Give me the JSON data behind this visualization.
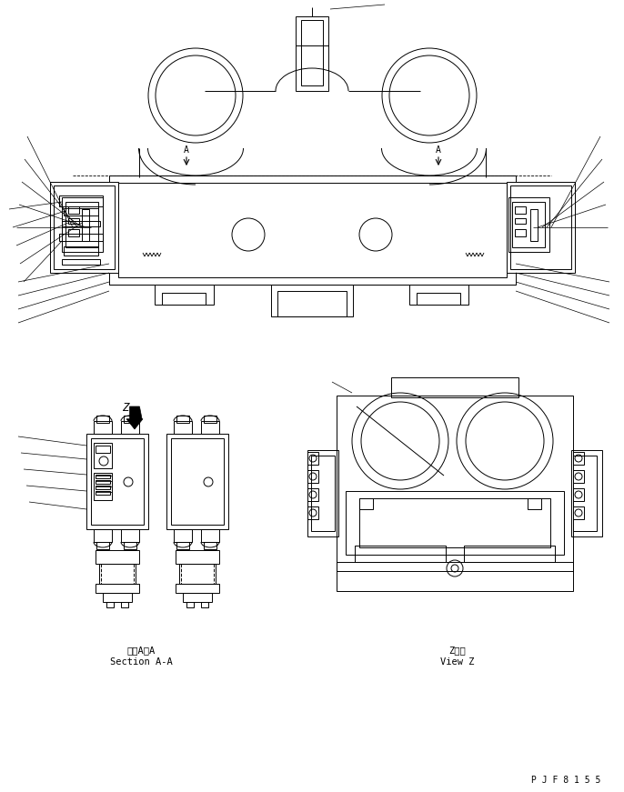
{
  "bg_color": "#ffffff",
  "line_color": "#000000",
  "lw": 0.7,
  "label_section_aa_jp": "断面A－A",
  "label_section_aa_en": "Section A-A",
  "label_viewz_jp": "Z　視",
  "label_viewz_en": "View Z",
  "label_z": "Z",
  "label_a_left": "A",
  "label_a_right": "A",
  "footer": "P J F 8 1 5 5"
}
